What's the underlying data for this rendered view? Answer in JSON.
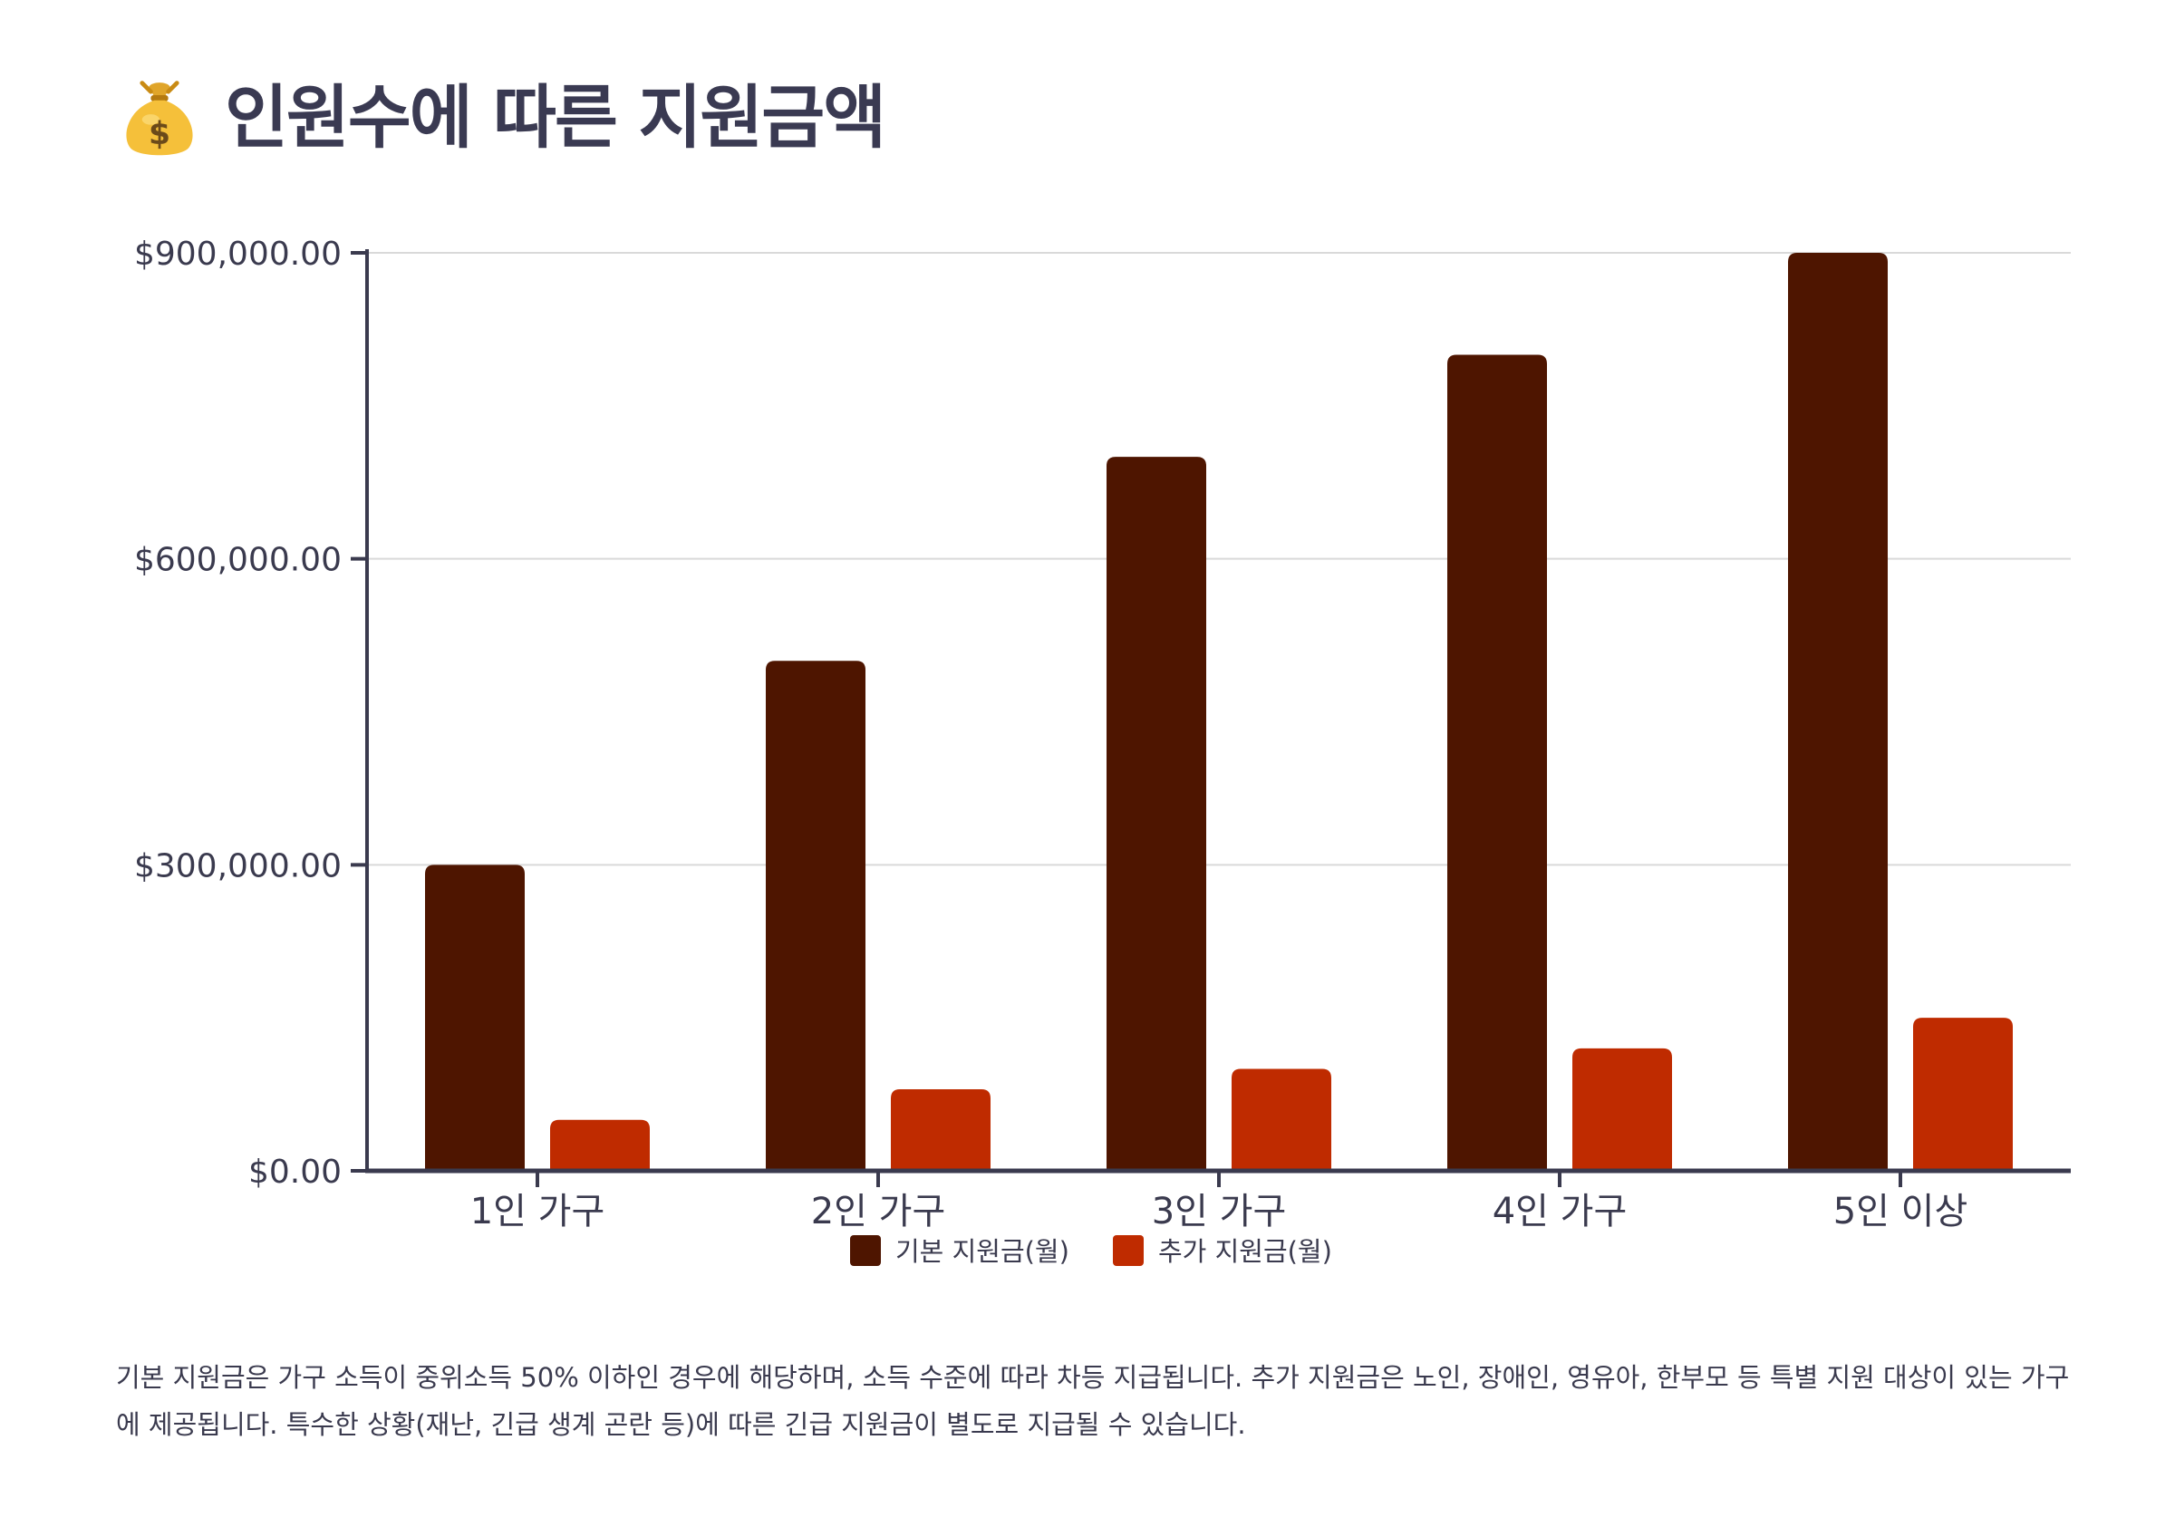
{
  "page": {
    "title": "인원수에 따른 지원금액",
    "title_icon": "money-bag-icon",
    "footnote": "기본 지원금은 가구 소득이 중위소득 50% 이하인 경우에 해당하며, 소득 수준에 따라 차등 지급됩니다. 추가 지원금은 노인, 장애인, 영유아, 한부모 등 특별 지원 대상이 있는 가구에 제공됩니다. 특수한 상황(재난, 긴급 생계 곤란 등)에 따른 긴급 지원금이 별도로 지급될 수 있습니다."
  },
  "colors": {
    "base": "#4e1500",
    "extra": "#bf2b00",
    "axis": "#3a3a4e",
    "grid": "#d9d9d9"
  },
  "chart_data": {
    "type": "bar",
    "title": "인원수에 따른 지원금액",
    "categories": [
      "1인 가구",
      "2인 가구",
      "3인 가구",
      "4인 가구",
      "5인 이상"
    ],
    "series": [
      {
        "name": "기본 지원금(월)",
        "values": [
          300000,
          500000,
          700000,
          800000,
          900000
        ]
      },
      {
        "name": "추가 지원금(월)",
        "values": [
          50000,
          80000,
          100000,
          120000,
          150000
        ]
      }
    ],
    "ylim": [
      0,
      900000
    ],
    "yticks": [
      0,
      300000,
      600000,
      900000
    ],
    "ytick_labels": [
      "$0.00",
      "$300,000.00",
      "$600,000.00",
      "$900,000.00"
    ],
    "xlabel": "",
    "ylabel": "",
    "grid": true,
    "legend_position": "bottom"
  }
}
